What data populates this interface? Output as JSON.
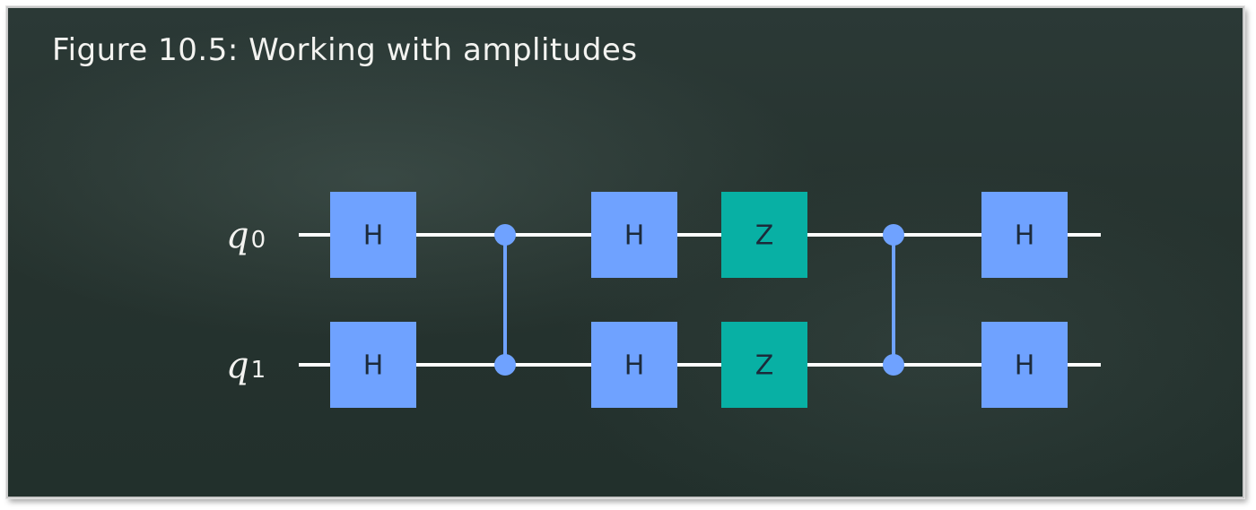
{
  "figure": {
    "title": "Figure 10.5: Working with amplitudes"
  },
  "circuit": {
    "qubits": [
      {
        "name": "q",
        "index": "0"
      },
      {
        "name": "q",
        "index": "1"
      }
    ],
    "moments": [
      {
        "type": "gate",
        "label": "H",
        "color": "#6fa2ff",
        "qubits": [
          0,
          1
        ]
      },
      {
        "type": "cz",
        "qubits": [
          0,
          1
        ]
      },
      {
        "type": "gate",
        "label": "H",
        "color": "#6fa2ff",
        "qubits": [
          0,
          1
        ]
      },
      {
        "type": "gate",
        "label": "Z",
        "color": "#08b0a4",
        "qubits": [
          0,
          1
        ]
      },
      {
        "type": "cz",
        "qubits": [
          0,
          1
        ]
      },
      {
        "type": "gate",
        "label": "H",
        "color": "#6fa2ff",
        "qubits": [
          0,
          1
        ]
      }
    ]
  }
}
